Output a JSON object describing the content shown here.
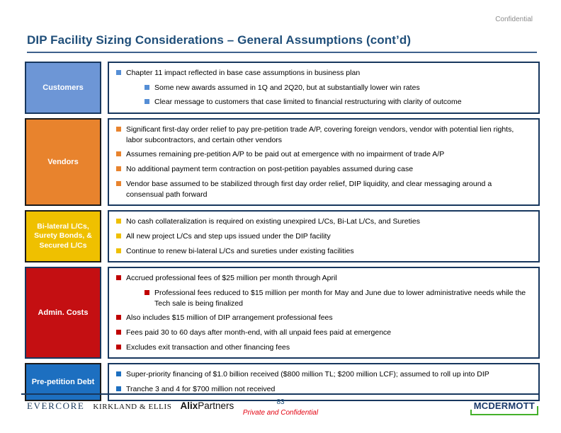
{
  "confidential_label": "Confidential",
  "title": "DIP Facility Sizing Considerations – General Assumptions (cont’d)",
  "accent_colors": {
    "title_blue": "#1F4E79",
    "rule_blue": "#3E618C",
    "content_border_navy": "#17375E"
  },
  "sections": [
    {
      "id": "customers",
      "label": "Customers",
      "label_fill": "#6D96D6",
      "label_border": "#17375E",
      "bullet_color": "#558ED5",
      "min_height": 64,
      "items": [
        {
          "level": 1,
          "text": "Chapter 11 impact reflected in base case assumptions in business plan"
        },
        {
          "level": 2,
          "text": "Some new awards assumed in 1Q and 2Q20, but at substantially lower win rates"
        },
        {
          "level": 2,
          "text": "Clear message to customers that case limited to financial restructuring with clarity of outcome"
        }
      ]
    },
    {
      "id": "vendors",
      "label": "Vendors",
      "label_fill": "#E8832D",
      "label_border": "#1A1A1A",
      "bullet_color": "#E8832D",
      "min_height": 110,
      "items": [
        {
          "level": 1,
          "text": "Significant first-day order relief to pay pre-petition trade A/P, covering foreign vendors, vendor with potential lien rights, labor subcontractors, and certain other vendors"
        },
        {
          "level": 1,
          "text": "Assumes remaining pre-petition A/P to be paid out at emergence with no impairment of trade A/P"
        },
        {
          "level": 1,
          "text": "No additional payment term contraction on post-petition payables assumed during case"
        },
        {
          "level": 1,
          "text": "Vendor base assumed to be stabilized through first day order relief, DIP liquidity, and clear messaging around a consensual path forward"
        }
      ]
    },
    {
      "id": "bilateral-lcs",
      "label": "Bi-lateral L/Cs, Surety Bonds, & Secured L/Cs",
      "label_fill": "#EFC000",
      "label_border": "#1A1A1A",
      "bullet_color": "#EFC000",
      "min_height": 64,
      "items": [
        {
          "level": 1,
          "text": "No cash collateralization is required on existing unexpired L/Cs, Bi-Lat L/Cs, and Sureties"
        },
        {
          "level": 1,
          "text": "All new project L/Cs and step ups issued under the DIP facility"
        },
        {
          "level": 1,
          "text": "Continue to renew bi-lateral L/Cs and sureties under existing facilities"
        }
      ]
    },
    {
      "id": "admin-costs",
      "label": "Admin. Costs",
      "label_fill": "#C40F12",
      "label_border": "#17375E",
      "bullet_color": "#C00000",
      "min_height": 114,
      "items": [
        {
          "level": 1,
          "text": "Accrued professional fees of $25 million per month through April"
        },
        {
          "level": 2,
          "text": "Professional fees reduced to $15 million per month for May and June due to lower administrative needs while the Tech sale is being finalized"
        },
        {
          "level": 1,
          "text": "Also includes $15 million of DIP arrangement professional fees"
        },
        {
          "level": 1,
          "text": "Fees paid 30 to 60 days after month-end, with all unpaid fees paid at emergence"
        },
        {
          "level": 1,
          "text": "Excludes exit transaction and other financing fees"
        }
      ]
    },
    {
      "id": "pre-petition-debt",
      "label": "Pre-petition Debt",
      "label_fill": "#1D6FC0",
      "label_border": "#1A1A1A",
      "bullet_color": "#1D6FC0",
      "min_height": 43,
      "items": [
        {
          "level": 1,
          "text": "Super-priority financing of $1.0 billion received ($800 million TL; $200 million LCF); assumed to roll up into DIP"
        },
        {
          "level": 1,
          "text": "Tranche 3 and 4 for $700 million not received"
        }
      ]
    }
  ],
  "footer": {
    "evercore_logo": "EVERCORE",
    "kirkland_logo": "KIRKLAND & ELLIS",
    "alix_logo_bold": "Alix",
    "alix_logo_rest": "Partners",
    "mcdermott_logo": "MCDERMOTT",
    "page_number": "83",
    "private_label": "Private and Confidential"
  }
}
